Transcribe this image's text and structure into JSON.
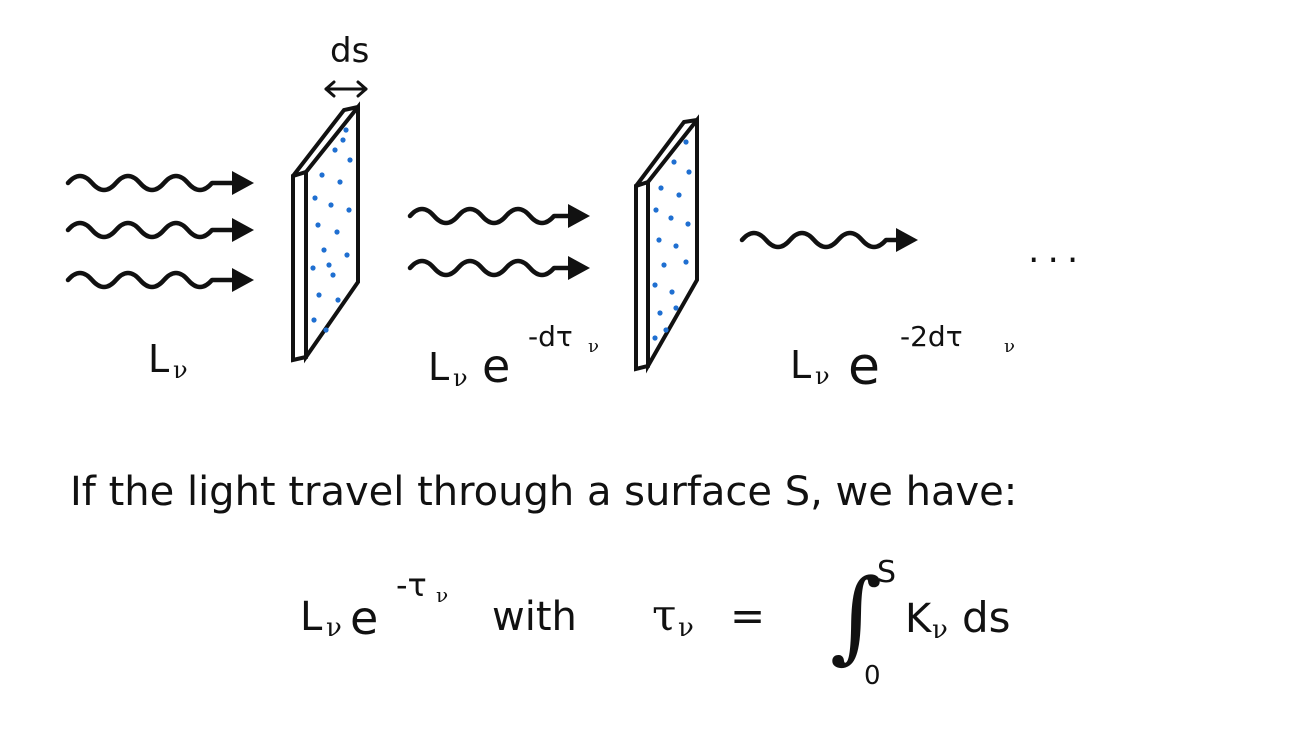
{
  "diagram": {
    "thickness_label": "ds",
    "labels": {
      "initial": {
        "base": "L",
        "sub": "ν"
      },
      "after_one": {
        "base": "L",
        "sub": "ν",
        "e": "e",
        "exp": "-dτ",
        "exp_sub": "ν"
      },
      "after_two": {
        "base": "L",
        "sub": "ν",
        "e": "e",
        "exp": "-2dτ",
        "exp_sub": "ν"
      },
      "ellipsis": "..."
    },
    "colors": {
      "ink": "#111111",
      "particles": "#1f6fd1"
    }
  },
  "text": {
    "sentence": "If the light travel through a surface S, we have:",
    "formula": {
      "lhs_base": "L",
      "lhs_sub": "ν",
      "lhs_e": "e",
      "lhs_exp": "-τ",
      "lhs_exp_sub": "ν",
      "with": "with",
      "tau": "τ",
      "tau_sub": "ν",
      "equals": "=",
      "integral": "∫",
      "upper": "S",
      "lower": "0",
      "integrand_k": "K",
      "integrand_sub": "ν",
      "integrand_ds": "ds"
    }
  }
}
